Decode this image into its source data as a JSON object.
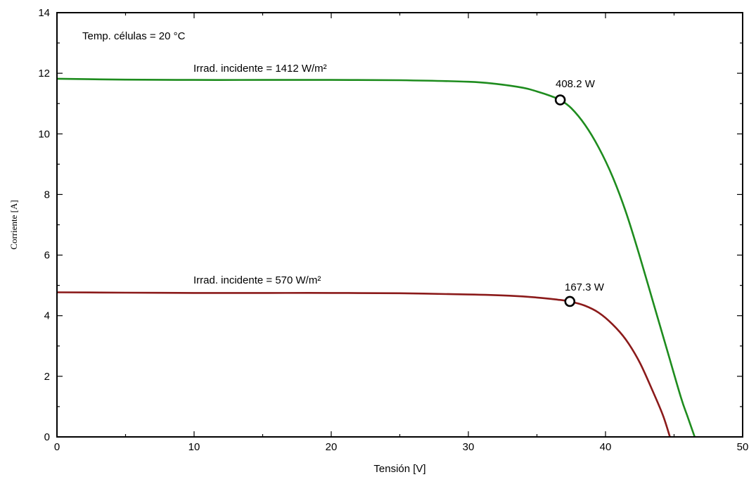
{
  "chart_data": {
    "type": "line",
    "xlabel": "Tensión [V]",
    "ylabel": "Corriente [A]",
    "xlim": [
      0,
      50
    ],
    "ylim": [
      0,
      14
    ],
    "x_ticks": [
      0,
      10,
      20,
      30,
      40,
      50
    ],
    "y_ticks": [
      0,
      2,
      4,
      6,
      8,
      10,
      12,
      14
    ],
    "grid": false,
    "annotation": "Temp. células = 20 °C",
    "series": [
      {
        "name": "Irrad. incidente = 1412 W/m²",
        "color": "#1e8c1e",
        "x": [
          0,
          5,
          10,
          15,
          20,
          25,
          30,
          32,
          34,
          35,
          36,
          36.7,
          37.5,
          38.5,
          39.5,
          40.5,
          41.5,
          42.5,
          43.5,
          44.5,
          45.5,
          46.0,
          46.5
        ],
        "y": [
          11.82,
          11.79,
          11.78,
          11.78,
          11.78,
          11.77,
          11.72,
          11.65,
          11.52,
          11.4,
          11.25,
          11.12,
          10.85,
          10.3,
          9.55,
          8.6,
          7.4,
          5.95,
          4.4,
          2.85,
          1.3,
          0.65,
          0.0
        ],
        "mpp": {
          "x": 36.7,
          "y": 11.12,
          "label": "408.2 W"
        }
      },
      {
        "name": "Irrad. incidente = 570 W/m²",
        "color": "#8b1a1a",
        "x": [
          0,
          5,
          10,
          15,
          20,
          25,
          30,
          33,
          35,
          36.5,
          37.4,
          38.5,
          39.5,
          40.5,
          41.5,
          42.5,
          43.5,
          44.2,
          44.7
        ],
        "y": [
          4.77,
          4.76,
          4.75,
          4.75,
          4.75,
          4.74,
          4.7,
          4.66,
          4.6,
          4.53,
          4.47,
          4.33,
          4.1,
          3.72,
          3.2,
          2.45,
          1.45,
          0.7,
          0.0
        ],
        "mpp": {
          "x": 37.4,
          "y": 4.47,
          "label": "167.3 W"
        }
      }
    ]
  }
}
